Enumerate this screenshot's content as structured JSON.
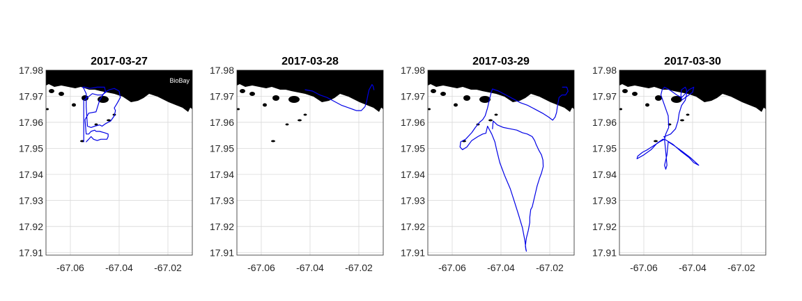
{
  "colors": {
    "track": "#0000e6",
    "land": "#000000",
    "grid": "#d8d8d8"
  },
  "chart_data": [
    {
      "type": "line",
      "title": "2017-03-27",
      "xlim": [
        -67.07,
        -67.01
      ],
      "ylim": [
        17.909,
        17.98
      ],
      "xticks": [
        -67.06,
        -67.04,
        -67.02
      ],
      "yticks": [
        17.91,
        17.92,
        17.93,
        17.94,
        17.95,
        17.96,
        17.97,
        17.98
      ],
      "xtick_labels": [
        "-67.06",
        "-67.04",
        "-67.02"
      ],
      "ytick_labels": [
        "17.91",
        "17.92",
        "17.93",
        "17.94",
        "17.95",
        "17.96",
        "17.97",
        "17.98"
      ],
      "grid": true,
      "annotation": "BioBay",
      "series": [
        {
          "x": [
            -67.0535,
            -67.053,
            -67.0525,
            -67.052,
            -67.0515,
            -67.0505,
            -67.049,
            -67.0475,
            -67.046,
            -67.045,
            -67.0445,
            -67.0445,
            -67.046,
            -67.048,
            -67.0495,
            -67.05,
            -67.0515,
            -67.0525,
            -67.0535,
            -67.054,
            -67.0525,
            -67.0495,
            -67.048,
            -67.046,
            -67.044,
            -67.042,
            -67.04,
            -67.0395,
            -67.041,
            -67.042,
            -67.0415,
            -67.042,
            -67.0435,
            -67.0455,
            -67.047,
            -67.048,
            -67.05,
            -67.0515,
            -67.053,
            -67.0535,
            -67.0535,
            -67.0545,
            -67.055,
            -67.054,
            -67.052,
            -67.049,
            -67.046,
            -67.0455,
            -67.047,
            -67.049,
            -67.051,
            -67.053,
            -67.0545,
            -67.0545
          ],
          "y": [
            17.9525,
            17.953,
            17.9535,
            17.954,
            17.9545,
            17.9535,
            17.953,
            17.9535,
            17.9535,
            17.9535,
            17.9545,
            17.9555,
            17.956,
            17.9565,
            17.9565,
            17.957,
            17.9565,
            17.9555,
            17.9555,
            17.961,
            17.9635,
            17.964,
            17.9685,
            17.9715,
            17.9725,
            17.973,
            17.972,
            17.9695,
            17.967,
            17.9655,
            17.9645,
            17.9625,
            17.9605,
            17.9595,
            17.9585,
            17.959,
            17.9585,
            17.958,
            17.9585,
            17.966,
            17.971,
            17.973,
            17.9735,
            17.9735,
            17.973,
            17.9735,
            17.9735,
            17.9715,
            17.9705,
            17.9705,
            17.971,
            17.9695,
            17.9685,
            17.9525
          ]
        }
      ]
    },
    {
      "type": "line",
      "title": "2017-03-28",
      "xlim": [
        -67.07,
        -67.01
      ],
      "ylim": [
        17.909,
        17.98
      ],
      "xticks": [
        -67.06,
        -67.04,
        -67.02
      ],
      "yticks": [
        17.91,
        17.92,
        17.93,
        17.94,
        17.95,
        17.96,
        17.97,
        17.98
      ],
      "xtick_labels": [
        "-67.06",
        "-67.04",
        "-67.02"
      ],
      "ytick_labels": [
        "17.91",
        "17.92",
        "17.93",
        "17.94",
        "17.95",
        "17.96",
        "17.97",
        "17.98"
      ],
      "grid": true,
      "series": [
        {
          "x": [
            -67.042,
            -67.039,
            -67.036,
            -67.033,
            -67.03,
            -67.027,
            -67.024,
            -67.021,
            -67.019,
            -67.0175,
            -67.0168,
            -67.0163,
            -67.0158,
            -67.0152,
            -67.0146,
            -67.0142,
            -67.0138
          ],
          "y": [
            17.9725,
            17.972,
            17.9705,
            17.9695,
            17.968,
            17.9665,
            17.9655,
            17.9645,
            17.9645,
            17.966,
            17.968,
            17.9705,
            17.9725,
            17.9735,
            17.9745,
            17.974,
            17.9725
          ]
        }
      ]
    },
    {
      "type": "line",
      "title": "2017-03-29",
      "xlim": [
        -67.07,
        -67.01
      ],
      "ylim": [
        17.909,
        17.98
      ],
      "xticks": [
        -67.06,
        -67.04,
        -67.02
      ],
      "yticks": [
        17.91,
        17.92,
        17.93,
        17.94,
        17.95,
        17.96,
        17.97,
        17.98
      ],
      "xtick_labels": [
        "-67.06",
        "-67.04",
        "-67.02"
      ],
      "ytick_labels": [
        "17.91",
        "17.92",
        "17.93",
        "17.94",
        "17.95",
        "17.96",
        "17.97",
        "17.98"
      ],
      "grid": true,
      "series": [
        {
          "x": [
            -67.0148,
            -67.013,
            -67.0125,
            -67.0135,
            -67.015,
            -67.0162,
            -67.0168,
            -67.0172,
            -67.0178,
            -67.0188,
            -67.0205,
            -67.023,
            -67.026,
            -67.029,
            -67.032,
            -67.035,
            -67.038,
            -67.041,
            -67.0435,
            -67.044,
            -67.0448,
            -67.0455,
            -67.0465,
            -67.0475,
            -67.0488,
            -67.0505,
            -67.052,
            -67.0545,
            -67.0565,
            -67.0568,
            -67.0558,
            -67.054,
            -67.052,
            -67.0495,
            -67.0475,
            -67.0462,
            -67.0455,
            -67.0438,
            -67.0425,
            -67.0418,
            -67.0405,
            -67.0385,
            -67.0362,
            -67.0345,
            -67.0328,
            -67.0312,
            -67.0302,
            -67.0298,
            -67.0296,
            -67.0298,
            -67.03,
            -67.0296,
            -67.0288,
            -67.0282,
            -67.0282,
            -67.0278,
            -67.0272,
            -67.0262,
            -67.0252,
            -67.0242,
            -67.0234,
            -67.0227,
            -67.0228,
            -67.0234,
            -67.0246,
            -67.0256,
            -67.0262,
            -67.0272,
            -67.0292,
            -67.0312,
            -67.0335,
            -67.0362,
            -67.039,
            -67.0415,
            -67.0432,
            -67.0435
          ],
          "y": [
            17.9735,
            17.9735,
            17.972,
            17.9705,
            17.9705,
            17.9695,
            17.9665,
            17.9638,
            17.962,
            17.9608,
            17.962,
            17.9635,
            17.965,
            17.9665,
            17.9675,
            17.969,
            17.9705,
            17.972,
            17.9728,
            17.9715,
            17.9685,
            17.9655,
            17.9625,
            17.961,
            17.96,
            17.958,
            17.956,
            17.9535,
            17.9525,
            17.9505,
            17.9495,
            17.9505,
            17.953,
            17.9545,
            17.9555,
            17.9558,
            17.9585,
            17.9555,
            17.9525,
            17.9495,
            17.9445,
            17.9395,
            17.9345,
            17.9295,
            17.9245,
            17.9195,
            17.9145,
            17.9115,
            17.9105,
            17.9112,
            17.9125,
            17.9155,
            17.9185,
            17.9215,
            17.9235,
            17.9265,
            17.9275,
            17.9315,
            17.9355,
            17.9385,
            17.9405,
            17.943,
            17.9455,
            17.9475,
            17.9495,
            17.9515,
            17.953,
            17.9545,
            17.9555,
            17.956,
            17.957,
            17.9575,
            17.958,
            17.959,
            17.9605,
            17.9575
          ]
        }
      ]
    },
    {
      "type": "line",
      "title": "2017-03-30",
      "xlim": [
        -67.07,
        -67.01
      ],
      "ylim": [
        17.909,
        17.98
      ],
      "xticks": [
        -67.06,
        -67.04,
        -67.02
      ],
      "yticks": [
        17.91,
        17.92,
        17.93,
        17.94,
        17.95,
        17.96,
        17.97,
        17.98
      ],
      "xtick_labels": [
        "-67.06",
        "-67.04",
        "-67.02"
      ],
      "ytick_labels": [
        "17.91",
        "17.92",
        "17.93",
        "17.94",
        "17.95",
        "17.96",
        "17.97",
        "17.98"
      ],
      "grid": true,
      "series": [
        {
          "x": [
            -67.0515,
            -67.048,
            -67.045,
            -67.0415,
            -67.0395,
            -67.0375,
            -67.041,
            -67.0445,
            -67.0475,
            -67.05,
            -67.0505,
            -67.0515,
            -67.051,
            -67.0505,
            -67.051,
            -67.0515,
            -67.0535,
            -67.056,
            -67.0585,
            -67.0605,
            -67.0625,
            -67.0628,
            -67.06,
            -67.057,
            -67.0545,
            -67.0522,
            -67.0515,
            -67.0513,
            -67.0518,
            -67.0515,
            -67.049,
            -67.047,
            -67.046,
            -67.0455,
            -67.0445,
            -67.043,
            -67.0425,
            -67.0425,
            -67.043,
            -67.0445,
            -67.0448,
            -67.0445,
            -67.0415,
            -67.04,
            -67.0395,
            -67.0415,
            -67.0435,
            -67.0445,
            -67.0465,
            -67.0495,
            -67.0515,
            -67.0525,
            -67.053,
            -67.0515,
            -67.05,
            -67.0498,
            -67.051,
            -67.0515
          ],
          "y": [
            17.9535,
            17.9515,
            17.949,
            17.9465,
            17.9445,
            17.9435,
            17.9465,
            17.949,
            17.951,
            17.9525,
            17.9475,
            17.9435,
            17.942,
            17.9435,
            17.9485,
            17.9535,
            17.9525,
            17.951,
            17.9495,
            17.9485,
            17.947,
            17.946,
            17.9475,
            17.9495,
            17.952,
            17.9535,
            17.9535,
            17.954,
            17.9545,
            17.9545,
            17.9555,
            17.9575,
            17.9605,
            17.9635,
            17.9665,
            17.9685,
            17.9705,
            17.9725,
            17.9735,
            17.9725,
            17.9705,
            17.9685,
            17.9705,
            17.9715,
            17.9735,
            17.9725,
            17.9705,
            17.9695,
            17.9705,
            17.9725,
            17.9735,
            17.9725,
            17.9705,
            17.9665,
            17.9625,
            17.958,
            17.9555,
            17.9535
          ]
        }
      ]
    }
  ]
}
